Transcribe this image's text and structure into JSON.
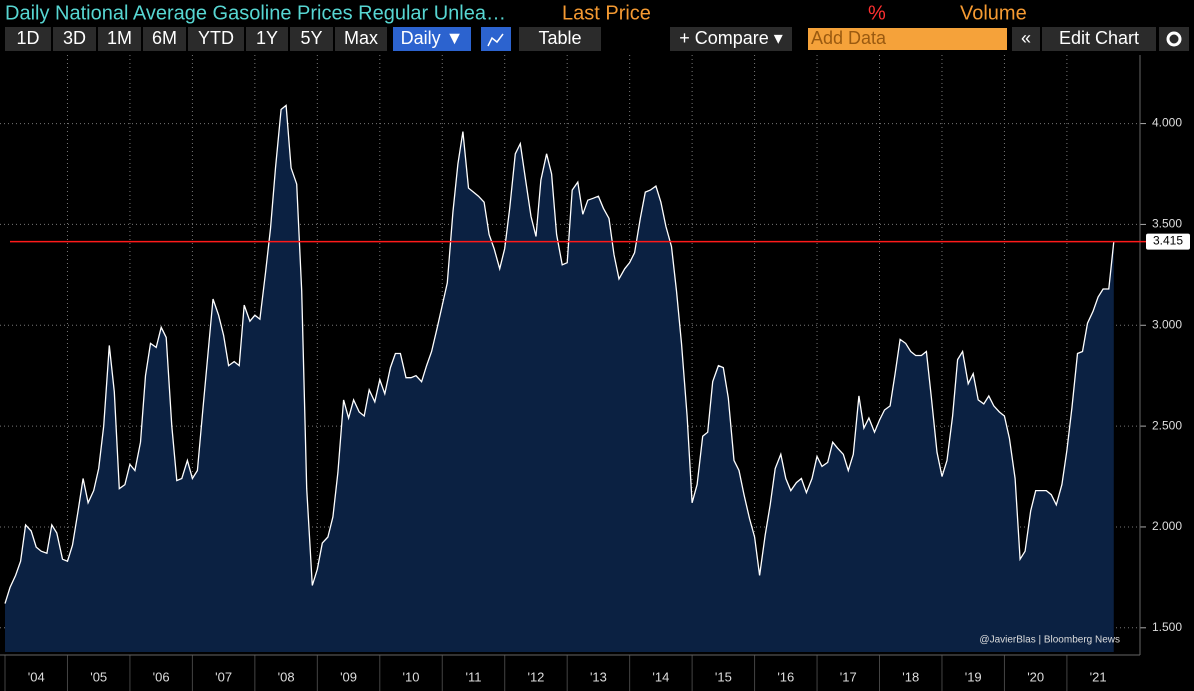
{
  "header": {
    "title": "Daily National Average Gasoline Prices Regular Unlea…",
    "fields": [
      "Last Price",
      "%",
      "Volume"
    ]
  },
  "toolbar": {
    "ranges": [
      "1D",
      "3D",
      "1M",
      "6M",
      "YTD",
      "1Y",
      "5Y",
      "Max"
    ],
    "frequency": "Daily ▼",
    "table": "Table",
    "compare": "+ Compare ▾",
    "add_data": "Add Data",
    "edit": "Edit Chart"
  },
  "chart_data": {
    "type": "area",
    "color": "#ffffff",
    "fill": "#0b2142",
    "grid": true,
    "x": [
      2004.0,
      2004.08,
      2004.17,
      2004.25,
      2004.33,
      2004.42,
      2004.5,
      2004.58,
      2004.67,
      2004.75,
      2004.83,
      2004.92,
      2005.0,
      2005.08,
      2005.17,
      2005.25,
      2005.33,
      2005.42,
      2005.5,
      2005.58,
      2005.67,
      2005.75,
      2005.83,
      2005.92,
      2006.0,
      2006.08,
      2006.17,
      2006.25,
      2006.33,
      2006.42,
      2006.5,
      2006.58,
      2006.67,
      2006.75,
      2006.83,
      2006.92,
      2007.0,
      2007.08,
      2007.17,
      2007.25,
      2007.33,
      2007.42,
      2007.5,
      2007.58,
      2007.67,
      2007.75,
      2007.83,
      2007.92,
      2008.0,
      2008.08,
      2008.17,
      2008.25,
      2008.33,
      2008.42,
      2008.5,
      2008.58,
      2008.67,
      2008.75,
      2008.83,
      2008.92,
      2009.0,
      2009.08,
      2009.17,
      2009.25,
      2009.33,
      2009.42,
      2009.5,
      2009.58,
      2009.67,
      2009.75,
      2009.83,
      2009.92,
      2010.0,
      2010.08,
      2010.17,
      2010.25,
      2010.33,
      2010.42,
      2010.5,
      2010.58,
      2010.67,
      2010.75,
      2010.83,
      2010.92,
      2011.0,
      2011.08,
      2011.17,
      2011.25,
      2011.33,
      2011.42,
      2011.5,
      2011.58,
      2011.67,
      2011.75,
      2011.83,
      2011.92,
      2012.0,
      2012.08,
      2012.17,
      2012.25,
      2012.33,
      2012.42,
      2012.5,
      2012.58,
      2012.67,
      2012.75,
      2012.83,
      2012.92,
      2013.0,
      2013.08,
      2013.17,
      2013.25,
      2013.33,
      2013.42,
      2013.5,
      2013.58,
      2013.67,
      2013.75,
      2013.83,
      2013.92,
      2014.0,
      2014.08,
      2014.17,
      2014.25,
      2014.33,
      2014.42,
      2014.5,
      2014.58,
      2014.67,
      2014.75,
      2014.83,
      2014.92,
      2015.0,
      2015.08,
      2015.17,
      2015.25,
      2015.33,
      2015.42,
      2015.5,
      2015.58,
      2015.67,
      2015.75,
      2015.83,
      2015.92,
      2016.0,
      2016.08,
      2016.17,
      2016.25,
      2016.33,
      2016.42,
      2016.5,
      2016.58,
      2016.67,
      2016.75,
      2016.83,
      2016.92,
      2017.0,
      2017.08,
      2017.17,
      2017.25,
      2017.33,
      2017.42,
      2017.5,
      2017.58,
      2017.67,
      2017.75,
      2017.83,
      2017.92,
      2018.0,
      2018.08,
      2018.17,
      2018.25,
      2018.33,
      2018.42,
      2018.5,
      2018.58,
      2018.67,
      2018.75,
      2018.83,
      2018.92,
      2019.0,
      2019.08,
      2019.17,
      2019.25,
      2019.33,
      2019.42,
      2019.5,
      2019.58,
      2019.67,
      2019.75,
      2019.83,
      2019.92,
      2020.0,
      2020.08,
      2020.17,
      2020.25,
      2020.33,
      2020.42,
      2020.5,
      2020.58,
      2020.67,
      2020.75,
      2020.83,
      2020.92,
      2021.0,
      2021.08,
      2021.17,
      2021.25,
      2021.33,
      2021.42,
      2021.5,
      2021.58,
      2021.67,
      2021.75
    ],
    "values": [
      1.62,
      1.7,
      1.76,
      1.83,
      2.01,
      1.98,
      1.9,
      1.88,
      1.87,
      2.01,
      1.97,
      1.84,
      1.83,
      1.91,
      2.08,
      2.24,
      2.12,
      2.18,
      2.29,
      2.5,
      2.9,
      2.67,
      2.19,
      2.21,
      2.31,
      2.28,
      2.42,
      2.75,
      2.91,
      2.89,
      2.99,
      2.94,
      2.5,
      2.23,
      2.24,
      2.33,
      2.24,
      2.28,
      2.59,
      2.86,
      3.13,
      3.05,
      2.95,
      2.8,
      2.82,
      2.8,
      3.1,
      3.02,
      3.05,
      3.03,
      3.26,
      3.48,
      3.78,
      4.07,
      4.09,
      3.78,
      3.7,
      3.17,
      2.19,
      1.71,
      1.79,
      1.92,
      1.95,
      2.05,
      2.27,
      2.63,
      2.54,
      2.63,
      2.57,
      2.55,
      2.68,
      2.62,
      2.73,
      2.66,
      2.79,
      2.86,
      2.86,
      2.74,
      2.74,
      2.75,
      2.72,
      2.8,
      2.87,
      2.99,
      3.1,
      3.21,
      3.56,
      3.8,
      3.96,
      3.68,
      3.66,
      3.64,
      3.61,
      3.45,
      3.38,
      3.28,
      3.38,
      3.58,
      3.85,
      3.9,
      3.73,
      3.54,
      3.44,
      3.72,
      3.85,
      3.75,
      3.45,
      3.3,
      3.31,
      3.67,
      3.71,
      3.55,
      3.62,
      3.63,
      3.64,
      3.58,
      3.53,
      3.35,
      3.23,
      3.28,
      3.31,
      3.36,
      3.53,
      3.66,
      3.67,
      3.69,
      3.61,
      3.49,
      3.39,
      3.17,
      2.91,
      2.55,
      2.12,
      2.21,
      2.45,
      2.47,
      2.72,
      2.8,
      2.79,
      2.64,
      2.33,
      2.28,
      2.16,
      2.04,
      1.95,
      1.76,
      1.96,
      2.11,
      2.29,
      2.36,
      2.24,
      2.18,
      2.22,
      2.24,
      2.17,
      2.24,
      2.35,
      2.3,
      2.32,
      2.42,
      2.39,
      2.36,
      2.28,
      2.36,
      2.65,
      2.49,
      2.54,
      2.47,
      2.53,
      2.58,
      2.6,
      2.76,
      2.93,
      2.91,
      2.87,
      2.85,
      2.85,
      2.87,
      2.64,
      2.37,
      2.25,
      2.33,
      2.55,
      2.83,
      2.87,
      2.71,
      2.76,
      2.63,
      2.61,
      2.65,
      2.6,
      2.57,
      2.55,
      2.44,
      2.24,
      1.84,
      1.88,
      2.08,
      2.18,
      2.18,
      2.18,
      2.16,
      2.11,
      2.21,
      2.38,
      2.59,
      2.86,
      2.87,
      3.01,
      3.07,
      3.14,
      3.18,
      3.18,
      3.415
    ],
    "last_price": 3.415,
    "line_color": "#ff1a1a",
    "xlim": [
      2004.0,
      2021.85
    ],
    "xticks": [
      {
        "value": 2004,
        "label": "'04"
      },
      {
        "value": 2005,
        "label": "'05"
      },
      {
        "value": 2006,
        "label": "'06"
      },
      {
        "value": 2007,
        "label": "'07"
      },
      {
        "value": 2008,
        "label": "'08"
      },
      {
        "value": 2009,
        "label": "'09"
      },
      {
        "value": 2010,
        "label": "'10"
      },
      {
        "value": 2011,
        "label": "'11"
      },
      {
        "value": 2012,
        "label": "'12"
      },
      {
        "value": 2013,
        "label": "'13"
      },
      {
        "value": 2014,
        "label": "'14"
      },
      {
        "value": 2015,
        "label": "'15"
      },
      {
        "value": 2016,
        "label": "'16"
      },
      {
        "value": 2017,
        "label": "'17"
      },
      {
        "value": 2018,
        "label": "'18"
      },
      {
        "value": 2019,
        "label": "'19"
      },
      {
        "value": 2020,
        "label": "'20"
      },
      {
        "value": 2021,
        "label": "'21"
      }
    ],
    "ylim": [
      1.38,
      4.34
    ],
    "yticks": [
      {
        "value": 1.5,
        "label": "1.500"
      },
      {
        "value": 2,
        "label": "2.000"
      },
      {
        "value": 2.5,
        "label": "2.500"
      },
      {
        "value": 3,
        "label": "3.000"
      },
      {
        "value": 3.5,
        "label": "3.500"
      },
      {
        "value": 4,
        "label": "4.000"
      }
    ],
    "source": "@JavierBlas | Bloomberg News"
  }
}
